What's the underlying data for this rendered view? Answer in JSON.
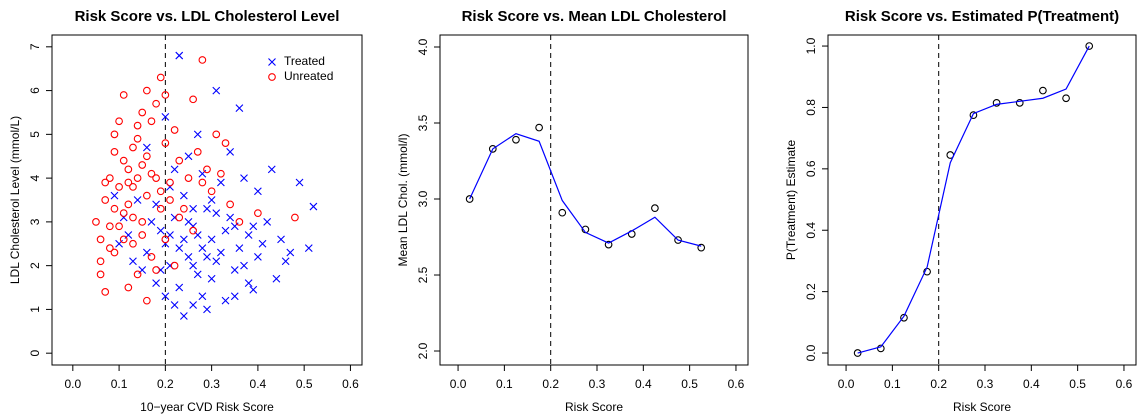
{
  "chart_data": [
    {
      "type": "scatter",
      "title": "Risk Score vs. LDL Cholesterol Level",
      "x_label": "10−year CVD Risk Score",
      "y_label": "LDL Cholesterol Level (mmol/L)",
      "xlim": [
        -0.045,
        0.625
      ],
      "ylim": [
        -0.27,
        7.27
      ],
      "xticks": [
        {
          "value": 0,
          "label": "0.0"
        },
        0.1,
        0.2,
        0.3,
        0.4,
        0.5,
        0.6
      ],
      "yticks": [
        0,
        1,
        2,
        3,
        4,
        5,
        6,
        7
      ],
      "vline": 0.2,
      "legend": "top-right",
      "series": [
        {
          "name": "Treated",
          "color": "#0000ff",
          "marker": "x",
          "x": [
            0.2,
            0.22,
            0.25,
            0.27,
            0.3,
            0.18,
            0.23,
            0.26,
            0.29,
            0.31,
            0.33,
            0.35,
            0.21,
            0.24,
            0.28,
            0.32,
            0.36,
            0.38,
            0.4,
            0.19,
            0.17,
            0.16,
            0.14,
            0.12,
            0.22,
            0.25,
            0.27,
            0.23,
            0.31,
            0.36,
            0.34,
            0.37,
            0.4,
            0.42,
            0.45,
            0.47,
            0.49,
            0.52,
            0.51,
            0.46,
            0.44,
            0.39,
            0.33,
            0.29,
            0.24,
            0.26,
            0.2,
            0.18,
            0.15,
            0.13,
            0.11,
            0.09,
            0.1,
            0.21,
            0.26,
            0.28,
            0.3,
            0.32,
            0.34,
            0.35,
            0.37,
            0.38,
            0.24,
            0.26,
            0.27,
            0.29,
            0.23,
            0.19,
            0.21,
            0.25,
            0.3,
            0.41,
            0.43,
            0.28,
            0.2,
            0.16,
            0.22,
            0.35,
            0.39,
            0.31
          ],
          "values": [
            2.5,
            3.1,
            2.2,
            1.8,
            2.6,
            3.4,
            1.5,
            2.9,
            3.3,
            2.1,
            2.8,
            1.9,
            2.0,
            3.6,
            1.3,
            3.9,
            2.4,
            1.6,
            2.2,
            2.8,
            3.0,
            2.3,
            3.5,
            2.7,
            4.2,
            4.5,
            5.0,
            6.8,
            6.0,
            5.6,
            4.6,
            4.0,
            3.7,
            3.0,
            2.6,
            2.3,
            3.9,
            3.35,
            2.4,
            2.1,
            1.7,
            1.45,
            1.2,
            1.0,
            0.85,
            1.1,
            1.3,
            1.6,
            1.9,
            2.1,
            3.1,
            3.6,
            2.5,
            3.8,
            3.3,
            2.4,
            1.7,
            2.3,
            3.1,
            2.9,
            2.0,
            2.7,
            2.6,
            2.0,
            2.7,
            2.2,
            2.4,
            1.9,
            2.7,
            3.0,
            3.5,
            2.5,
            4.2,
            4.1,
            5.4,
            4.7,
            1.1,
            1.3,
            2.9,
            3.2
          ]
        },
        {
          "name": "Unreated",
          "color": "#ff0000",
          "marker": "circle",
          "x": [
            0.05,
            0.06,
            0.07,
            0.08,
            0.09,
            0.1,
            0.11,
            0.12,
            0.13,
            0.14,
            0.15,
            0.16,
            0.17,
            0.18,
            0.19,
            0.28,
            0.2,
            0.21,
            0.22,
            0.23,
            0.24,
            0.25,
            0.26,
            0.27,
            0.29,
            0.3,
            0.32,
            0.34,
            0.36,
            0.4,
            0.48,
            0.11,
            0.14,
            0.16,
            0.09,
            0.06,
            0.07,
            0.06,
            0.08,
            0.1,
            0.12,
            0.13,
            0.15,
            0.17,
            0.19,
            0.18,
            0.16,
            0.12,
            0.14,
            0.2,
            0.22,
            0.11,
            0.13,
            0.1,
            0.09,
            0.08,
            0.07,
            0.12,
            0.14,
            0.15,
            0.16,
            0.18,
            0.19,
            0.21,
            0.23,
            0.26,
            0.28,
            0.31,
            0.33,
            0.17,
            0.2,
            0.13,
            0.11,
            0.09,
            0.15
          ],
          "values": [
            3.0,
            2.6,
            3.5,
            4.0,
            4.6,
            5.3,
            3.2,
            4.2,
            3.8,
            4.9,
            5.5,
            3.6,
            4.1,
            5.7,
            6.3,
            6.7,
            4.8,
            3.9,
            5.1,
            4.4,
            3.3,
            4.0,
            5.8,
            4.6,
            4.2,
            3.7,
            4.1,
            3.4,
            3.0,
            3.2,
            3.1,
            5.9,
            5.2,
            6.0,
            5.0,
            2.1,
            1.4,
            1.8,
            2.4,
            2.9,
            3.4,
            2.5,
            3.0,
            2.2,
            3.3,
            1.9,
            1.2,
            1.5,
            1.8,
            2.6,
            2.0,
            4.4,
            4.7,
            3.8,
            3.3,
            2.9,
            3.9,
            3.9,
            4.0,
            4.3,
            4.5,
            4.0,
            3.7,
            3.5,
            3.1,
            2.8,
            3.9,
            5.0,
            4.8,
            5.3,
            5.9,
            3.1,
            2.6,
            2.3,
            2.7
          ]
        }
      ]
    },
    {
      "type": "line",
      "title": "Risk Score vs. Mean LDL Cholesterol",
      "x_label": "Risk Score",
      "y_label": "Mean LDL Chol. (mmol/l)",
      "xlim": [
        -0.039,
        0.626
      ],
      "ylim": [
        1.908,
        4.079
      ],
      "xticks": [
        {
          "value": 0,
          "label": "0.0"
        },
        0.1,
        0.2,
        0.3,
        0.4,
        0.5,
        0.6
      ],
      "yticks": [
        {
          "value": 2,
          "label": "2.0"
        },
        2.5,
        {
          "value": 3,
          "label": "3.0"
        },
        3.5,
        {
          "value": 4,
          "label": "4.0"
        }
      ],
      "vline": 0.2,
      "x": [
        0.025,
        0.075,
        0.125,
        0.175,
        0.225,
        0.275,
        0.325,
        0.375,
        0.425,
        0.475,
        0.525
      ],
      "series": [
        {
          "color": "#000000",
          "marker": "circle",
          "values": [
            3.0,
            3.33,
            3.39,
            3.47,
            2.91,
            2.8,
            2.7,
            2.77,
            2.94,
            2.73,
            2.68
          ]
        },
        {
          "color": "#0000ff",
          "marker": "line",
          "values": [
            3.0,
            3.33,
            3.43,
            3.38,
            2.99,
            2.78,
            2.71,
            2.79,
            2.88,
            2.73,
            2.69
          ]
        }
      ]
    },
    {
      "type": "line",
      "title": "Risk Score vs. Estimated P(Treatment)",
      "x_label": "Risk Score",
      "y_label": "P(Treatment) Estimate",
      "xlim": [
        -0.039,
        0.626
      ],
      "ylim": [
        -0.039,
        1.036
      ],
      "xticks": [
        {
          "value": 0,
          "label": "0.0"
        },
        0.1,
        0.2,
        0.3,
        0.4,
        0.5,
        0.6
      ],
      "yticks": [
        {
          "value": 0,
          "label": "0.0"
        },
        0.2,
        0.4,
        0.6,
        0.8,
        {
          "value": 1,
          "label": "1.0"
        }
      ],
      "vline": 0.2,
      "x": [
        0.025,
        0.075,
        0.125,
        0.175,
        0.225,
        0.275,
        0.325,
        0.375,
        0.425,
        0.475,
        0.525
      ],
      "series": [
        {
          "color": "#000000",
          "marker": "circle",
          "values": [
            0.0,
            0.015,
            0.115,
            0.265,
            0.645,
            0.775,
            0.815,
            0.815,
            0.855,
            0.83,
            1.0
          ]
        },
        {
          "color": "#0000ff",
          "marker": "line",
          "values": [
            0.0,
            0.02,
            0.12,
            0.28,
            0.62,
            0.78,
            0.81,
            0.82,
            0.83,
            0.86,
            1.0
          ]
        }
      ]
    }
  ]
}
